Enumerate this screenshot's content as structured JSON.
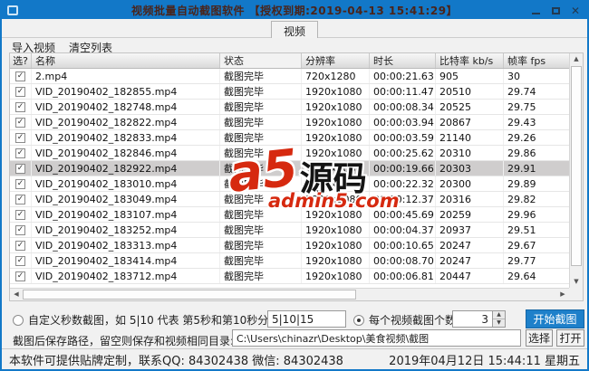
{
  "window": {
    "title": "视频批量自动截图软件 【授权到期:2019-04-13 15:41:29】"
  },
  "tab": {
    "label": "视频"
  },
  "menu": {
    "import_label": "导入视频",
    "clear_label": "清空列表"
  },
  "table": {
    "headers": [
      "选?",
      "名称",
      "状态",
      "分辨率",
      "时长",
      "比特率 kb/s",
      "帧率 fps"
    ],
    "rows": [
      {
        "checked": true,
        "name": "2.mp4",
        "status": "截图完毕",
        "resolution": "720x1280",
        "duration": "00:00:21.63",
        "bitrate": "905",
        "fps": "30",
        "highlighted": false
      },
      {
        "checked": true,
        "name": "VID_20190402_182855.mp4",
        "status": "截图完毕",
        "resolution": "1920x1080",
        "duration": "00:00:11.47",
        "bitrate": "20510",
        "fps": "29.74",
        "highlighted": false
      },
      {
        "checked": true,
        "name": "VID_20190402_182748.mp4",
        "status": "截图完毕",
        "resolution": "1920x1080",
        "duration": "00:00:08.34",
        "bitrate": "20525",
        "fps": "29.75",
        "highlighted": false
      },
      {
        "checked": true,
        "name": "VID_20190402_182822.mp4",
        "status": "截图完毕",
        "resolution": "1920x1080",
        "duration": "00:00:03.94",
        "bitrate": "20867",
        "fps": "29.43",
        "highlighted": false
      },
      {
        "checked": true,
        "name": "VID_20190402_182833.mp4",
        "status": "截图完毕",
        "resolution": "1920x1080",
        "duration": "00:00:03.59",
        "bitrate": "21140",
        "fps": "29.26",
        "highlighted": false
      },
      {
        "checked": true,
        "name": "VID_20190402_182846.mp4",
        "status": "截图完毕",
        "resolution": "1920x1080",
        "duration": "00:00:25.62",
        "bitrate": "20310",
        "fps": "29.86",
        "highlighted": false
      },
      {
        "checked": true,
        "name": "VID_20190402_182922.mp4",
        "status": "截图完毕",
        "resolution": "1920x1080",
        "duration": "00:00:19.66",
        "bitrate": "20303",
        "fps": "29.91",
        "highlighted": true
      },
      {
        "checked": true,
        "name": "VID_20190402_183010.mp4",
        "status": "截图完毕",
        "resolution": "1920x1080",
        "duration": "00:00:22.32",
        "bitrate": "20300",
        "fps": "29.89",
        "highlighted": false
      },
      {
        "checked": true,
        "name": "VID_20190402_183049.mp4",
        "status": "截图完毕",
        "resolution": "1920x1080",
        "duration": "00:00:12.37",
        "bitrate": "20316",
        "fps": "29.82",
        "highlighted": false
      },
      {
        "checked": true,
        "name": "VID_20190402_183107.mp4",
        "status": "截图完毕",
        "resolution": "1920x1080",
        "duration": "00:00:45.69",
        "bitrate": "20259",
        "fps": "29.96",
        "highlighted": false
      },
      {
        "checked": true,
        "name": "VID_20190402_183252.mp4",
        "status": "截图完毕",
        "resolution": "1920x1080",
        "duration": "00:00:04.37",
        "bitrate": "20937",
        "fps": "29.51",
        "highlighted": false
      },
      {
        "checked": true,
        "name": "VID_20190402_183313.mp4",
        "status": "截图完毕",
        "resolution": "1920x1080",
        "duration": "00:00:10.65",
        "bitrate": "20247",
        "fps": "29.67",
        "highlighted": false
      },
      {
        "checked": true,
        "name": "VID_20190402_183414.mp4",
        "status": "截图完毕",
        "resolution": "1920x1080",
        "duration": "00:00:08.70",
        "bitrate": "20247",
        "fps": "29.77",
        "highlighted": false
      },
      {
        "checked": true,
        "name": "VID_20190402_183712.mp4",
        "status": "截图完毕",
        "resolution": "1920x1080",
        "duration": "00:00:06.81",
        "bitrate": "20447",
        "fps": "29.64",
        "highlighted": false
      }
    ]
  },
  "watermark": {
    "logo_main": "a5",
    "logo_suffix": "源码",
    "site": "admin5.com"
  },
  "controls": {
    "custom_radio_label": "自定义秒数截图，如 5|10 代表 第5秒和第10秒分别截图一张:",
    "custom_secs_value": "5|10|15",
    "per_video_label": "每个视频截图个数:",
    "per_video_count": "3",
    "start_button_label": "开始截图"
  },
  "path_row": {
    "label": "截图后保存路径，留空则保存和视频相同目录:",
    "value": "C:\\Users\\chinazr\\Desktop\\美食视频\\截图",
    "select_button_label": "选择",
    "open_button_label": "打开"
  },
  "status_bar": {
    "left_text": "本软件可提供贴牌定制，联系QQ: 84302438 微信: 84302438",
    "right_text": "2019年04月12日 15:44:11 星期五"
  },
  "colors": {
    "titlebar_blue": "#1278c8",
    "start_button_blue": "#1e80ca",
    "highlight_row": "#cfcdcd",
    "watermark_red": "#d6290f"
  }
}
